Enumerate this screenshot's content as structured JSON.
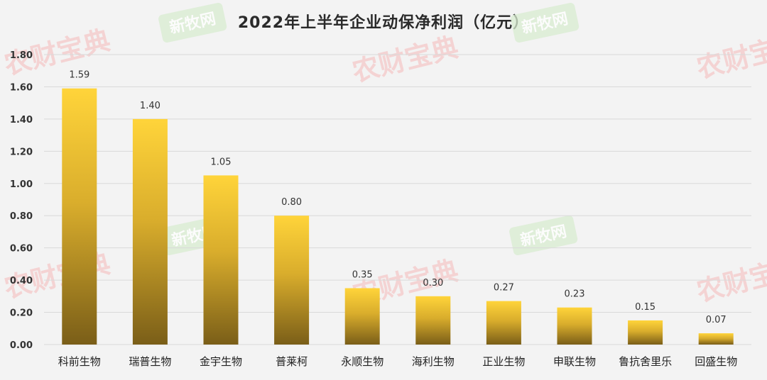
{
  "chart_data": {
    "type": "bar",
    "title": "2022年上半年企业动保净利润（亿元）",
    "categories": [
      "科前生物",
      "瑞普生物",
      "金宇生物",
      "普莱柯",
      "永顺生物",
      "海利生物",
      "正业生物",
      "申联生物",
      "鲁抗舍里乐",
      "回盛生物"
    ],
    "values": [
      1.59,
      1.4,
      1.05,
      0.8,
      0.35,
      0.3,
      0.27,
      0.23,
      0.15,
      0.07
    ],
    "data_labels": [
      "1.59",
      "1.40",
      "1.05",
      "0.80",
      "0.35",
      "0.30",
      "0.27",
      "0.23",
      "0.15",
      "0.07"
    ],
    "y_ticks": [
      "0.00",
      "0.20",
      "0.40",
      "0.60",
      "0.80",
      "1.00",
      "1.20",
      "1.40",
      "1.60",
      "1.80"
    ],
    "ylim": [
      0,
      1.8
    ],
    "xlabel": "",
    "ylabel": "",
    "grid": true,
    "legend": "none",
    "colors": {
      "bar_top": "#ffd43a",
      "bar_bottom": "#7a5e18",
      "background": "#f3f3f3"
    }
  },
  "watermarks": {
    "red_text": "农财宝典",
    "green_text": "新牧网"
  }
}
